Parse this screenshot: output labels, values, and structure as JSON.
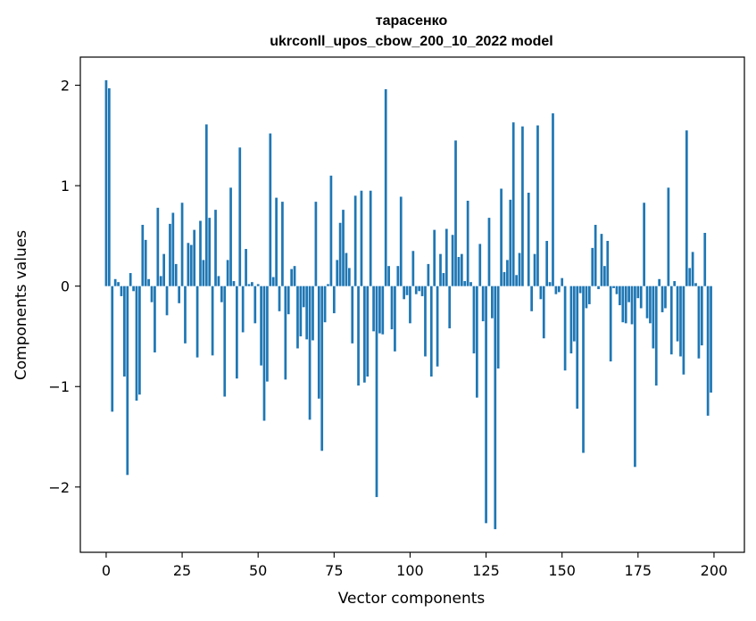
{
  "chart_data": {
    "type": "bar",
    "title": "тарасенко",
    "subtitle": "ukrconll_upos_cbow_200_10_2022 model",
    "xlabel": "Vector components",
    "ylabel": "Components values",
    "xlim": [
      -8.5,
      210
    ],
    "ylim": [
      -2.65,
      2.28
    ],
    "xticks": [
      0,
      25,
      50,
      75,
      100,
      125,
      150,
      175,
      200
    ],
    "xtick_labels": [
      "0",
      "25",
      "50",
      "75",
      "100",
      "125",
      "150",
      "175",
      "200"
    ],
    "yticks": [
      -2,
      -1,
      0,
      1,
      2
    ],
    "ytick_labels": [
      "−2",
      "−1",
      "0",
      "1",
      "2"
    ],
    "grid": false,
    "legend": "none",
    "bar_color": "#1f77b4",
    "values": [
      2.05,
      1.97,
      -1.25,
      0.07,
      0.04,
      -0.1,
      -0.9,
      -1.88,
      0.13,
      -0.05,
      -1.14,
      -1.08,
      0.61,
      0.46,
      0.07,
      -0.16,
      -0.66,
      0.78,
      0.1,
      0.32,
      -0.29,
      0.62,
      0.73,
      0.22,
      -0.17,
      0.83,
      -0.57,
      0.43,
      0.41,
      0.56,
      -0.71,
      0.65,
      0.26,
      1.61,
      0.68,
      -0.69,
      0.76,
      0.1,
      -0.16,
      -1.1,
      0.26,
      0.98,
      0.05,
      -0.92,
      1.38,
      -0.46,
      0.37,
      0.02,
      0.04,
      -0.37,
      0.02,
      -0.79,
      -1.34,
      -0.95,
      1.52,
      0.09,
      0.88,
      -0.25,
      0.84,
      -0.93,
      -0.28,
      0.17,
      0.2,
      -0.62,
      -0.5,
      -0.21,
      -0.53,
      -1.33,
      -0.54,
      0.84,
      -1.12,
      -1.64,
      -0.36,
      0.02,
      1.1,
      -0.27,
      0.26,
      0.63,
      0.76,
      0.33,
      0.18,
      -0.57,
      0.9,
      -0.99,
      0.95,
      -0.96,
      -0.9,
      0.95,
      -0.45,
      -2.1,
      -0.47,
      -0.48,
      1.96,
      0.2,
      -0.43,
      -0.65,
      0.2,
      0.89,
      -0.13,
      -0.09,
      -0.37,
      0.35,
      -0.08,
      -0.05,
      -0.1,
      -0.7,
      0.22,
      -0.9,
      0.56,
      -0.8,
      0.32,
      0.13,
      0.57,
      -0.42,
      0.51,
      1.45,
      0.29,
      0.32,
      0.05,
      0.85,
      0.04,
      -0.67,
      -1.11,
      0.42,
      -0.35,
      -2.36,
      0.68,
      -0.32,
      -2.42,
      -0.82,
      0.97,
      0.14,
      0.26,
      0.86,
      1.63,
      0.11,
      0.33,
      1.59,
      0.0,
      0.93,
      -0.25,
      0.32,
      1.6,
      -0.13,
      -0.52,
      0.45,
      0.04,
      1.72,
      -0.08,
      -0.06,
      0.08,
      -0.84,
      0.0,
      -0.67,
      -0.55,
      -1.22,
      -0.07,
      -1.66,
      -0.22,
      -0.18,
      0.38,
      0.61,
      -0.03,
      0.52,
      0.2,
      0.45,
      -0.75,
      -0.02,
      -0.08,
      -0.19,
      -0.36,
      -0.37,
      -0.16,
      -0.38,
      -1.8,
      -0.12,
      -0.22,
      0.83,
      -0.32,
      -0.37,
      -0.62,
      -0.99,
      0.07,
      -0.26,
      -0.22,
      0.98,
      -0.68,
      0.05,
      -0.55,
      -0.7,
      -0.88,
      1.55,
      0.18,
      0.34,
      0.03,
      -0.72,
      -0.59,
      0.53,
      -1.29,
      -1.06
    ]
  }
}
